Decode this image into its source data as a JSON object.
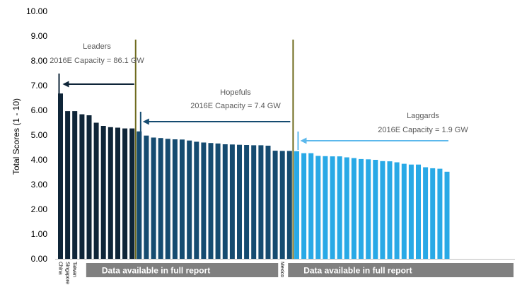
{
  "chart_data": {
    "type": "bar",
    "ylabel": "Total Scores (1 - 10)",
    "ylim": [
      0,
      10
    ],
    "yticks": [
      "0.00",
      "1.00",
      "2.00",
      "3.00",
      "4.00",
      "5.00",
      "6.00",
      "7.00",
      "8.00",
      "9.00",
      "10.00"
    ],
    "grid": false,
    "labeled_categories": [
      "China",
      "Singapore",
      "Taiwan",
      "Mexico"
    ],
    "series": [
      {
        "group": "Leaders",
        "color": "#0f2538",
        "values": [
          6.68,
          5.97,
          5.97,
          5.84,
          5.8,
          5.5,
          5.37,
          5.32,
          5.3,
          5.27,
          5.27
        ]
      },
      {
        "group": "Hopefuls",
        "color": "#154b70",
        "values": [
          5.15,
          4.98,
          4.9,
          4.88,
          4.85,
          4.83,
          4.82,
          4.78,
          4.73,
          4.7,
          4.68,
          4.66,
          4.63,
          4.62,
          4.61,
          4.6,
          4.59,
          4.59,
          4.57,
          4.37,
          4.36,
          4.36
        ]
      },
      {
        "group": "Laggards",
        "color": "#29a9e6",
        "values": [
          4.35,
          4.27,
          4.27,
          4.16,
          4.15,
          4.14,
          4.14,
          4.1,
          4.07,
          4.03,
          4.02,
          4.0,
          3.95,
          3.94,
          3.9,
          3.84,
          3.81,
          3.81,
          3.7,
          3.66,
          3.64,
          3.52
        ]
      }
    ],
    "annotations": [
      {
        "name": "Leaders",
        "capacity": "2016E Capacity = 86.1 GW"
      },
      {
        "name": "Hopefuls",
        "capacity": "2016E Capacity = 7.4 GW"
      },
      {
        "name": "Laggards",
        "capacity": "2016E Capacity = 1.9 GW"
      }
    ],
    "banners": [
      "Data available in full report",
      "Data available in full report"
    ]
  },
  "colors": {
    "divider": "#6e6a1c",
    "banner": "#808080",
    "leaders_arrow": "#0f2538",
    "hopefuls_arrow": "#154b70",
    "laggards_arrow": "#5cb8ec"
  }
}
